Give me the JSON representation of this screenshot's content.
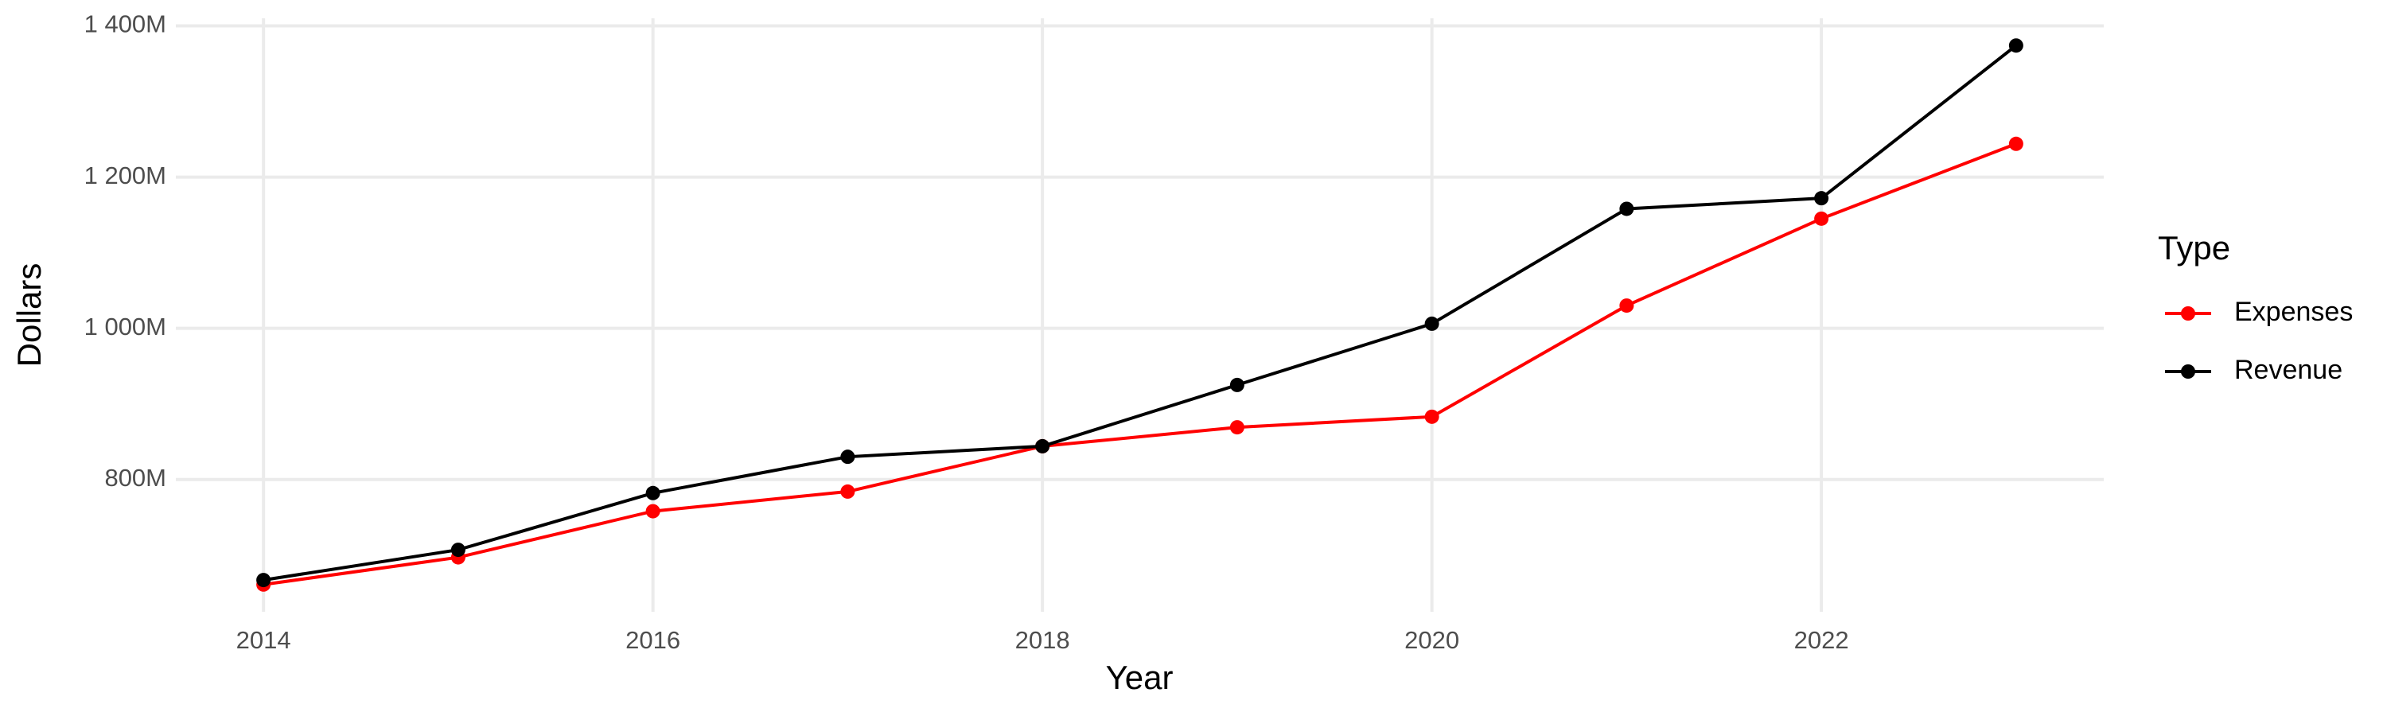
{
  "chart_data": {
    "type": "line",
    "x_label": "Year",
    "y_label": "Dollars",
    "legend_title": "Type",
    "x": [
      2014,
      2015,
      2016,
      2017,
      2018,
      2019,
      2020,
      2021,
      2022,
      2023
    ],
    "series": [
      {
        "name": "Expenses",
        "color": "#ff0000",
        "values": [
          661000000,
          697000000,
          758000000,
          784000000,
          844000000,
          869000000,
          883000000,
          1030000000,
          1145000000,
          1244000000
        ]
      },
      {
        "name": "Revenue",
        "color": "#000000",
        "values": [
          667000000,
          707000000,
          782000000,
          830000000,
          844000000,
          925000000,
          1006000000,
          1158000000,
          1172000000,
          1374000000
        ]
      }
    ],
    "xlim": [
      2013.55,
      2023.45
    ],
    "xticks": [
      2014,
      2016,
      2018,
      2020,
      2022
    ],
    "ylim": [
      625000000,
      1410000000
    ],
    "yticks": [
      {
        "value": 800000000,
        "label": "800M"
      },
      {
        "value": 1000000000,
        "label": "1 000M"
      },
      {
        "value": 1200000000,
        "label": "1 200M"
      },
      {
        "value": 1400000000,
        "label": "1 400M"
      }
    ],
    "grid": true,
    "legend": "right"
  }
}
